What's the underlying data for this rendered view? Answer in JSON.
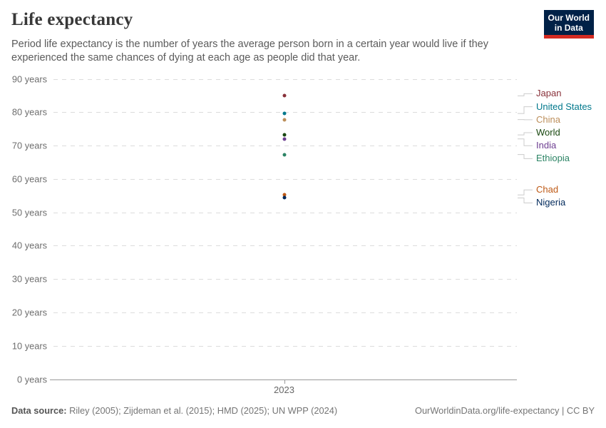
{
  "header": {
    "title": "Life expectancy",
    "subtitle": "Period life expectancy is the number of years the average person born in a certain year would live if they experienced the same chances of dying at each age as people did that year.",
    "logo": {
      "line1": "Our World",
      "line2": "in Data",
      "bg_color": "#002147",
      "accent_color": "#d42b22"
    }
  },
  "chart_data": {
    "type": "scatter",
    "title": "Life expectancy",
    "x": [
      2023
    ],
    "x_tick_label": "2023",
    "xlabel": "",
    "ylabel": "",
    "ylim": [
      0,
      90
    ],
    "ytick_interval": 10,
    "ytick_suffix": " years",
    "grid": "horizontal-dashed",
    "gridline_color": "#dcdcdc",
    "legend_position": "right",
    "series": [
      {
        "name": "Japan",
        "values": [
          84.9
        ],
        "color": "#883039"
      },
      {
        "name": "United States",
        "values": [
          79.6
        ],
        "color": "#00788c"
      },
      {
        "name": "China",
        "values": [
          77.8
        ],
        "color": "#bc8e5a"
      },
      {
        "name": "World",
        "values": [
          73.2
        ],
        "color": "#18470f"
      },
      {
        "name": "India",
        "values": [
          72.0
        ],
        "color": "#6d3e91"
      },
      {
        "name": "Ethiopia",
        "values": [
          67.3
        ],
        "color": "#2c8465"
      },
      {
        "name": "Chad",
        "values": [
          55.2
        ],
        "color": "#be5915"
      },
      {
        "name": "Nigeria",
        "values": [
          54.3
        ],
        "color": "#00295b"
      }
    ]
  },
  "footer": {
    "source_label": "Data source:",
    "source_text": " Riley (2005); Zijdeman et al. (2015); HMD (2025); UN WPP (2024)",
    "attribution": "OurWorldinData.org/life-expectancy | CC BY"
  }
}
